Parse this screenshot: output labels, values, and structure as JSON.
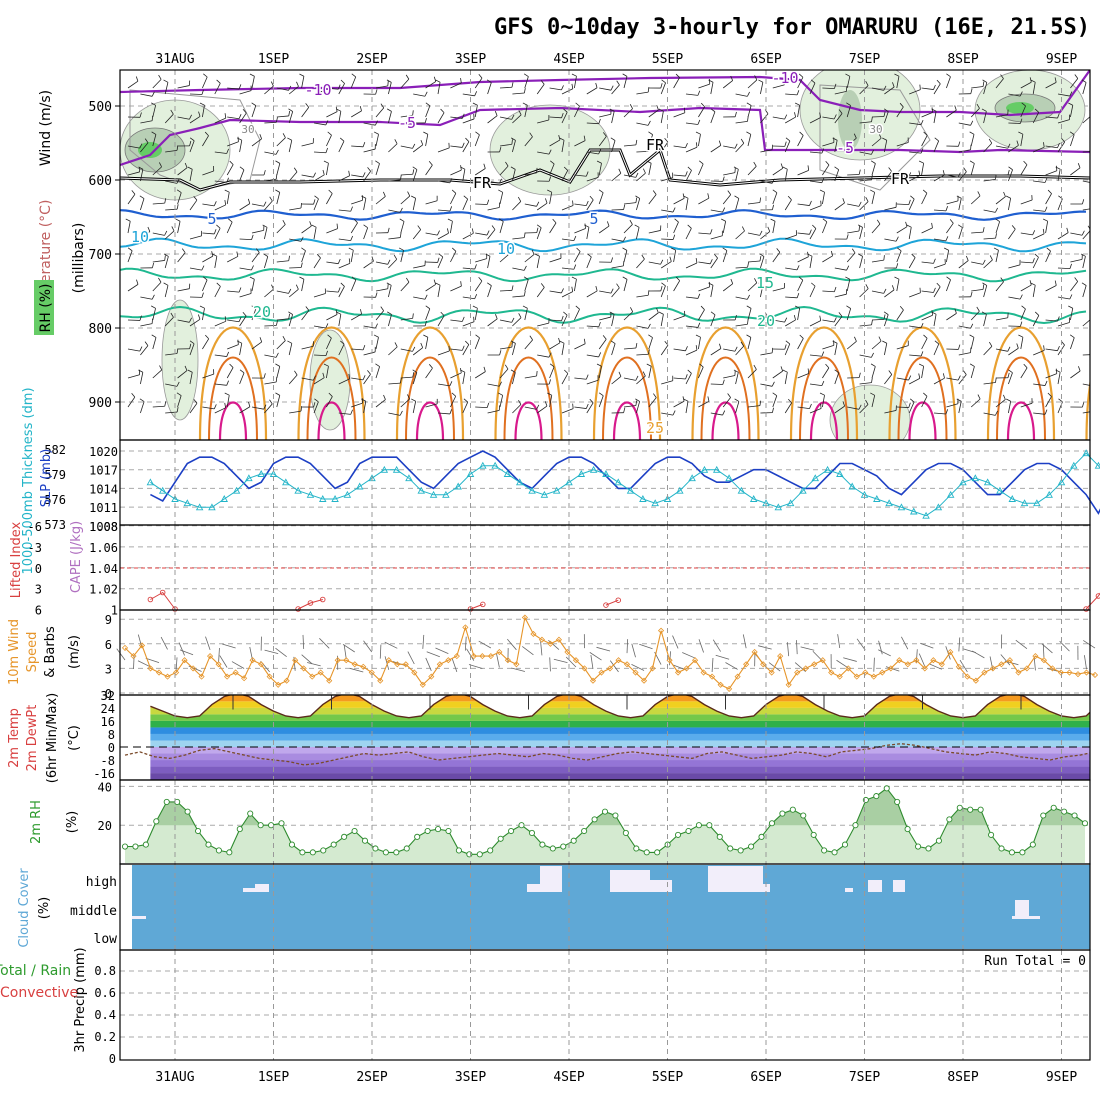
{
  "title": "GFS 0~10day 3-hourly for OMARURU (16E, 21.5S)",
  "dates": [
    "31AUG",
    "1SEP",
    "2SEP",
    "3SEP",
    "4SEP",
    "5SEP",
    "6SEP",
    "7SEP",
    "8SEP",
    "9SEP"
  ],
  "panels": {
    "upper": {
      "y_ticks": [
        "500",
        "600",
        "700",
        "800",
        "900"
      ],
      "label_wind": "Wind (m/s)",
      "label_temp": "Temperature (°C)",
      "label_rh": "RH (%)",
      "label_mb": "(millibars)",
      "contour_labels": [
        "-10",
        "-10",
        "-5",
        "-5",
        "FR",
        "FR",
        "FR",
        "5",
        "5",
        "10",
        "10",
        "15",
        "20",
        "20",
        "25",
        "30",
        "30"
      ]
    },
    "slp": {
      "left_ticks": [
        "582",
        "579",
        "576",
        "573"
      ],
      "right_ticks": [
        "1020",
        "1017",
        "1014",
        "1011",
        "1008"
      ],
      "label_thick": "1000-500mb Thickness (dm)",
      "label_slp": "SLP (mb)"
    },
    "cape": {
      "left_ticks": [
        "-6",
        "-3",
        "0",
        "3",
        "6"
      ],
      "right_ticks": [
        "1.08",
        "1.06",
        "1.04",
        "1.02",
        "1"
      ],
      "label_li": "Lifted Index",
      "label_cape": "CAPE (J/kg)"
    },
    "wind10": {
      "ticks": [
        "9",
        "6",
        "3",
        "0"
      ],
      "label_a": "10m Wind",
      "label_b": "Speed",
      "label_c": "& Barbs",
      "label_unit": "(m/s)"
    },
    "temp2m": {
      "ticks": [
        "32",
        "24",
        "16",
        "8",
        "0",
        "-8",
        "-16"
      ],
      "label_a": "2m Temp",
      "label_b": "2m DewPt",
      "label_c": "(6hr Min/Max)",
      "label_unit": "(°C)"
    },
    "rh2m": {
      "ticks": [
        "40",
        "20"
      ],
      "label_a": "2m RH",
      "label_unit": "(%)"
    },
    "cloud": {
      "ticks": [
        "high",
        "middle",
        "low"
      ],
      "label_a": "Cloud Cover",
      "label_unit": "(%)"
    },
    "precip": {
      "ticks": [
        "0.8",
        "0.6",
        "0.4",
        "0.2",
        "0"
      ],
      "label_a": "Total / Rain",
      "label_b": "Convective",
      "label_c": "3hr Precip (mm)",
      "run_total": "Run Total = 0"
    }
  },
  "colors": {
    "slp": "#1c3fc4",
    "thickness": "#22b4c8",
    "li": "#d84040",
    "wind_speed": "#e6952a",
    "rh_line": "#2e8b2e",
    "rh_fill": "#d4ead0",
    "cloud_bg": "#5fa8d6",
    "cloud_fill": "#f2eefa",
    "purple": "#8a1fb8",
    "blue_c": "#1f5fd0",
    "cyan_c": "#1ea4d8",
    "teal_c": "#1fb890",
    "orange_c": "#e8a030",
    "magenta_c": "#d81a8c"
  },
  "chart_data": [
    {
      "panel": "slp_thickness",
      "type": "line",
      "x_unit": "3-hourly steps from 30AUG 18Z",
      "series": [
        {
          "name": "SLP",
          "axis": "right",
          "values": [
            1013,
            1012,
            1015,
            1018,
            1019,
            1019,
            1018,
            1016,
            1014,
            1015,
            1018,
            1019,
            1019,
            1018,
            1016,
            1014,
            1015,
            1018,
            1019,
            1019,
            1019,
            1017,
            1015,
            1014,
            1016,
            1018,
            1019,
            1020,
            1019,
            1017,
            1015,
            1014,
            1016,
            1018,
            1019,
            1019,
            1018,
            1016,
            1014,
            1014,
            1016,
            1018,
            1019,
            1019,
            1018,
            1016,
            1015,
            1015,
            1016,
            1017,
            1017,
            1016,
            1015,
            1014,
            1014,
            1016,
            1018,
            1018,
            1017,
            1016,
            1014,
            1013,
            1015,
            1017,
            1018,
            1018,
            1017,
            1015,
            1013,
            1013,
            1015,
            1017,
            1018,
            1018,
            1017,
            1015,
            1013,
            1010,
            1014,
            1017,
            1018,
            1017,
            1015,
            1014,
            1017,
            1016
          ]
        },
        {
          "name": "Thickness",
          "axis": "left",
          "values": [
            578,
            577,
            576,
            575.5,
            575,
            575,
            576,
            577,
            578.5,
            579,
            579,
            578,
            577,
            576.5,
            576,
            576,
            576.5,
            577.5,
            578.5,
            579.5,
            579.5,
            578.5,
            577,
            576.5,
            576.5,
            577.5,
            579,
            580,
            580,
            579,
            578,
            577,
            576.5,
            577,
            578,
            579,
            579.5,
            579,
            578,
            577,
            576,
            575.5,
            576,
            577,
            578.5,
            579.5,
            579.5,
            578.5,
            577,
            576,
            575.5,
            575,
            575.5,
            577,
            578.5,
            579.5,
            579,
            577.5,
            576.5,
            576,
            575.5,
            575,
            574.5,
            574,
            575,
            576.5,
            578,
            578.5,
            578,
            577,
            576,
            575.5,
            575.5,
            576.5,
            578,
            580,
            581.5,
            580,
            578,
            576.5,
            576,
            575.5,
            575.5,
            575,
            576
          ]
        }
      ]
    },
    {
      "panel": "lifted_index",
      "type": "line",
      "segments": [
        {
          "start": 0,
          "values": [
            4.5,
            3.5,
            6
          ]
        },
        {
          "start": 12,
          "values": [
            6,
            5,
            4.5
          ]
        },
        {
          "start": 26,
          "values": [
            6,
            5.2
          ]
        },
        {
          "start": 37,
          "values": [
            5.3,
            4.6
          ]
        },
        {
          "start": 76,
          "values": [
            6,
            4,
            1.2,
            2,
            2.2,
            2.5,
            4,
            6
          ]
        },
        {
          "start": 92,
          "values": [
            6,
            4.5,
            4.5,
            4.4,
            5
          ]
        },
        {
          "start": 108,
          "values": [
            6,
            3,
            1.5,
            0.5,
            1,
            3.5,
            5,
            6
          ]
        }
      ]
    },
    {
      "panel": "wind10m_speed",
      "type": "line",
      "values": [
        5.5,
        4.5,
        5.8,
        3,
        2.5,
        2,
        2.5,
        4,
        3,
        2,
        4.5,
        3.5,
        2,
        2.5,
        1.8,
        4,
        3.5,
        2,
        1,
        1.5,
        4,
        3,
        2,
        2.5,
        1.5,
        4,
        4,
        3.5,
        3.2,
        2.5,
        1.5,
        4,
        3.5,
        3.5,
        2.5,
        1,
        2,
        3.5,
        4,
        4.5,
        8,
        4.5,
        4.5,
        4.5,
        5,
        4,
        3.5,
        9.2,
        7.2,
        6.5,
        6,
        6.5,
        5,
        4,
        3,
        1.5,
        2.5,
        3,
        4,
        3.5,
        2.5,
        1.5,
        3,
        7.6,
        4,
        2.5,
        3,
        4,
        2.5,
        2,
        1,
        0.5,
        2,
        3.5,
        5,
        3.5,
        2.5,
        4.5,
        1,
        2.5,
        3,
        3.5,
        4,
        2.5,
        2,
        3,
        2,
        2.5,
        2,
        2.5,
        3,
        4,
        3.5,
        4,
        3,
        4,
        3.5,
        5,
        3.2,
        2,
        1.5,
        2.5,
        3,
        3.5,
        4,
        2.5,
        3,
        4.5,
        4,
        3,
        2.5,
        2.5,
        2.3,
        2.5,
        2.2
      ]
    },
    {
      "panel": "temp2m",
      "type": "area",
      "x_unit": "3-hourly steps from 30AUG 18Z",
      "series": [
        {
          "name": "2m Temp",
          "values": [
            25,
            22,
            19,
            18,
            19,
            26,
            31,
            33,
            31,
            26,
            22,
            19,
            18,
            19,
            26,
            31,
            33,
            31,
            26,
            22,
            19,
            18,
            19,
            26,
            31,
            33,
            31,
            26,
            22,
            19,
            18,
            19,
            26,
            31,
            33,
            31,
            26,
            22,
            19,
            18,
            19,
            26,
            31,
            33,
            31,
            26,
            22,
            19,
            18,
            19,
            26,
            31,
            33,
            31,
            26,
            22,
            19,
            18,
            19,
            26,
            31,
            33,
            31,
            26,
            22,
            19,
            18,
            19,
            26,
            31,
            33,
            31,
            26,
            22,
            19,
            18,
            19,
            26,
            31,
            33,
            31,
            26,
            22,
            19,
            18,
            20
          ]
        },
        {
          "name": "2m DewPt",
          "values": [
            -5,
            -3,
            -6,
            -7,
            -5,
            -2,
            -1,
            -3,
            -5,
            -7,
            -8,
            -9,
            -11,
            -10,
            -8,
            -6,
            -4,
            -5,
            -4,
            -3,
            -6,
            -8,
            -7,
            -6,
            -5,
            -4,
            -5,
            -6,
            -4,
            -5,
            -7,
            -8,
            -6,
            -4,
            -3,
            -4,
            -5,
            -6,
            -7,
            -4,
            -3,
            -5,
            -7,
            -6,
            -5,
            -3,
            -4,
            -6,
            -3,
            -2,
            -1,
            1,
            2,
            1,
            -1,
            -3,
            -4,
            -5,
            -3,
            -4,
            -6,
            -7,
            -8,
            -6,
            -5,
            -3
          ]
        }
      ]
    },
    {
      "panel": "rh2m",
      "type": "area",
      "values": [
        9,
        9,
        10,
        22,
        32,
        32,
        27,
        17,
        10,
        7,
        6,
        18,
        26,
        20,
        20,
        21,
        10,
        6,
        6,
        7,
        10,
        14,
        17,
        12,
        8,
        6,
        6,
        8,
        14,
        17,
        18,
        17,
        7,
        5,
        5,
        7,
        13,
        17,
        20,
        16,
        10,
        8,
        9,
        12,
        17,
        23,
        27,
        25,
        16,
        8,
        6,
        6,
        10,
        15,
        17,
        20,
        20,
        14,
        8,
        7,
        9,
        14,
        21,
        26,
        28,
        25,
        15,
        7,
        6,
        10,
        20,
        33,
        35,
        39,
        32,
        18,
        9,
        8,
        12,
        23,
        29,
        28,
        28,
        15,
        8,
        6,
        6,
        10,
        25,
        29,
        27,
        25,
        21
      ]
    }
  ]
}
